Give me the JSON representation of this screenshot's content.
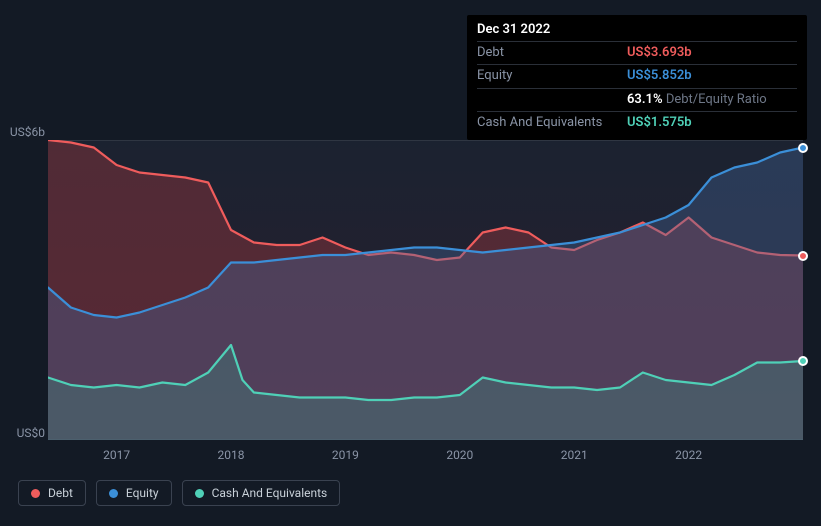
{
  "tooltip": {
    "date": "Dec 31 2022",
    "rows": [
      {
        "label": "Debt",
        "value": "US$3.693b",
        "color": "#ef5c5c"
      },
      {
        "label": "Equity",
        "value": "US$5.852b",
        "color": "#3b8fd8"
      },
      {
        "label": "",
        "value": "63.1%",
        "extra": "Debt/Equity Ratio",
        "color": "#ffffff"
      },
      {
        "label": "Cash And Equivalents",
        "value": "US$1.575b",
        "color": "#4fd0b7"
      }
    ]
  },
  "chart": {
    "type": "area",
    "background_top": "#1b2230",
    "background_bottom": "#2a1f2e",
    "frame_color": "#0f1620",
    "grid_color": "#2f3642",
    "ylim": [
      0,
      6
    ],
    "yticks": [
      {
        "v": 6,
        "label": "US$6b"
      },
      {
        "v": 0,
        "label": "US$0"
      }
    ],
    "xrange": [
      2016.4,
      2023.0
    ],
    "xticks": [
      2017,
      2018,
      2019,
      2020,
      2021,
      2022
    ],
    "series": [
      {
        "name": "Debt",
        "color": "#ef5c5c",
        "fill": "rgba(180,60,65,0.35)",
        "data": [
          [
            2016.4,
            6.0
          ],
          [
            2016.6,
            5.95
          ],
          [
            2016.8,
            5.85
          ],
          [
            2017.0,
            5.5
          ],
          [
            2017.2,
            5.35
          ],
          [
            2017.4,
            5.3
          ],
          [
            2017.6,
            5.25
          ],
          [
            2017.8,
            5.15
          ],
          [
            2018.0,
            4.2
          ],
          [
            2018.2,
            3.95
          ],
          [
            2018.4,
            3.9
          ],
          [
            2018.6,
            3.9
          ],
          [
            2018.8,
            4.05
          ],
          [
            2019.0,
            3.85
          ],
          [
            2019.2,
            3.7
          ],
          [
            2019.4,
            3.75
          ],
          [
            2019.6,
            3.7
          ],
          [
            2019.8,
            3.6
          ],
          [
            2020.0,
            3.65
          ],
          [
            2020.2,
            4.15
          ],
          [
            2020.4,
            4.25
          ],
          [
            2020.6,
            4.15
          ],
          [
            2020.8,
            3.85
          ],
          [
            2021.0,
            3.8
          ],
          [
            2021.2,
            4.0
          ],
          [
            2021.4,
            4.15
          ],
          [
            2021.6,
            4.35
          ],
          [
            2021.8,
            4.1
          ],
          [
            2022.0,
            4.45
          ],
          [
            2022.2,
            4.05
          ],
          [
            2022.4,
            3.9
          ],
          [
            2022.6,
            3.75
          ],
          [
            2022.8,
            3.7
          ],
          [
            2023.0,
            3.69
          ]
        ]
      },
      {
        "name": "Equity",
        "color": "#3b8fd8",
        "fill": "rgba(70,105,160,0.35)",
        "data": [
          [
            2016.4,
            3.05
          ],
          [
            2016.6,
            2.65
          ],
          [
            2016.8,
            2.5
          ],
          [
            2017.0,
            2.45
          ],
          [
            2017.2,
            2.55
          ],
          [
            2017.4,
            2.7
          ],
          [
            2017.6,
            2.85
          ],
          [
            2017.8,
            3.05
          ],
          [
            2018.0,
            3.55
          ],
          [
            2018.2,
            3.55
          ],
          [
            2018.4,
            3.6
          ],
          [
            2018.6,
            3.65
          ],
          [
            2018.8,
            3.7
          ],
          [
            2019.0,
            3.7
          ],
          [
            2019.2,
            3.75
          ],
          [
            2019.4,
            3.8
          ],
          [
            2019.6,
            3.85
          ],
          [
            2019.8,
            3.85
          ],
          [
            2020.0,
            3.8
          ],
          [
            2020.2,
            3.75
          ],
          [
            2020.4,
            3.8
          ],
          [
            2020.6,
            3.85
          ],
          [
            2020.8,
            3.9
          ],
          [
            2021.0,
            3.95
          ],
          [
            2021.2,
            4.05
          ],
          [
            2021.4,
            4.15
          ],
          [
            2021.6,
            4.3
          ],
          [
            2021.8,
            4.45
          ],
          [
            2022.0,
            4.7
          ],
          [
            2022.2,
            5.25
          ],
          [
            2022.4,
            5.45
          ],
          [
            2022.6,
            5.55
          ],
          [
            2022.8,
            5.75
          ],
          [
            2023.0,
            5.85
          ]
        ]
      },
      {
        "name": "Cash And Equivalents",
        "color": "#4fd0b7",
        "fill": "rgba(60,150,135,0.30)",
        "data": [
          [
            2016.4,
            1.25
          ],
          [
            2016.6,
            1.1
          ],
          [
            2016.8,
            1.05
          ],
          [
            2017.0,
            1.1
          ],
          [
            2017.2,
            1.05
          ],
          [
            2017.4,
            1.15
          ],
          [
            2017.6,
            1.1
          ],
          [
            2017.8,
            1.35
          ],
          [
            2018.0,
            1.9
          ],
          [
            2018.1,
            1.2
          ],
          [
            2018.2,
            0.95
          ],
          [
            2018.4,
            0.9
          ],
          [
            2018.6,
            0.85
          ],
          [
            2018.8,
            0.85
          ],
          [
            2019.0,
            0.85
          ],
          [
            2019.2,
            0.8
          ],
          [
            2019.4,
            0.8
          ],
          [
            2019.6,
            0.85
          ],
          [
            2019.8,
            0.85
          ],
          [
            2020.0,
            0.9
          ],
          [
            2020.2,
            1.25
          ],
          [
            2020.4,
            1.15
          ],
          [
            2020.6,
            1.1
          ],
          [
            2020.8,
            1.05
          ],
          [
            2021.0,
            1.05
          ],
          [
            2021.2,
            1.0
          ],
          [
            2021.4,
            1.05
          ],
          [
            2021.6,
            1.35
          ],
          [
            2021.8,
            1.2
          ],
          [
            2022.0,
            1.15
          ],
          [
            2022.2,
            1.1
          ],
          [
            2022.4,
            1.3
          ],
          [
            2022.6,
            1.55
          ],
          [
            2022.8,
            1.55
          ],
          [
            2023.0,
            1.58
          ]
        ]
      }
    ],
    "line_width": 2.2,
    "endpoint_markers": true
  },
  "legend": [
    {
      "label": "Debt",
      "color": "#ef5c5c"
    },
    {
      "label": "Equity",
      "color": "#3b8fd8"
    },
    {
      "label": "Cash And Equivalents",
      "color": "#4fd0b7"
    }
  ]
}
